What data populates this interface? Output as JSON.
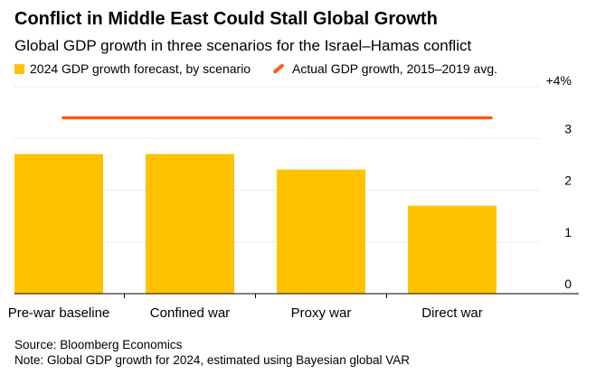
{
  "colors": {
    "bar": "#FFC200",
    "line": "#FF5A0F",
    "axis": "#000000",
    "grid": "#cccccc"
  },
  "chart_data": {
    "type": "bar",
    "title": "Conflict in Middle East Could Stall Global Growth",
    "subtitle": "Global GDP growth in three scenarios for the Israel–Hamas conflict",
    "categories": [
      "Pre-war baseline",
      "Confined war",
      "Proxy war",
      "Direct war"
    ],
    "series": [
      {
        "name": "2024 GDP growth forecast, by scenario",
        "values": [
          2.7,
          2.7,
          2.4,
          1.7
        ]
      }
    ],
    "reference_line": {
      "name": "Actual GDP growth, 2015–2019 avg.",
      "value": 3.4
    },
    "yticks": [
      {
        "value": 0,
        "label": "0"
      },
      {
        "value": 1,
        "label": "1"
      },
      {
        "value": 2,
        "label": "2"
      },
      {
        "value": 3,
        "label": "3"
      },
      {
        "value": 4,
        "label": "+4%"
      }
    ],
    "ylim": [
      0,
      4
    ],
    "xlabel": "",
    "ylabel": "",
    "legend_position": "top-left"
  },
  "source": "Source: Bloomberg Economics",
  "note": "Note: Global GDP growth for 2024, estimated using Bayesian global VAR"
}
